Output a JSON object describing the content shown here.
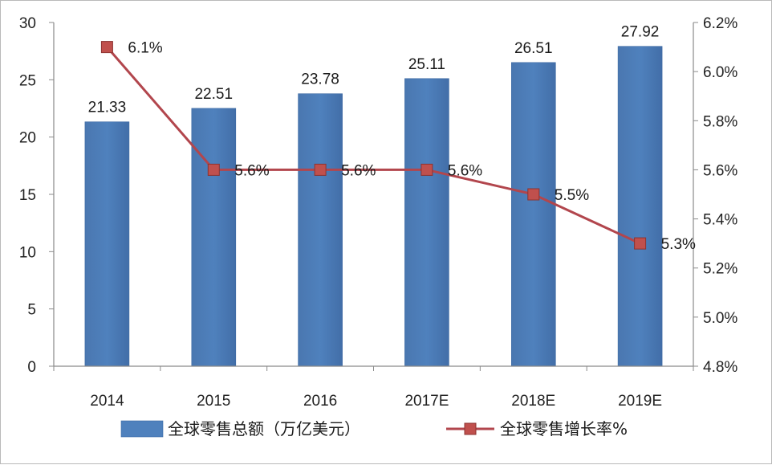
{
  "chart_data": {
    "type": "bar",
    "categories": [
      "2014",
      "2015",
      "2016",
      "2017E",
      "2018E",
      "2019E"
    ],
    "series": [
      {
        "name": "全球零售总额（万亿美元）",
        "type": "bar",
        "axis": "left",
        "values": [
          21.33,
          22.51,
          23.78,
          25.11,
          26.51,
          27.92
        ],
        "labels": [
          "21.33",
          "22.51",
          "23.78",
          "25.11",
          "26.51",
          "27.92"
        ],
        "color": "#4f81bd"
      },
      {
        "name": "全球零售增长率%",
        "type": "line",
        "axis": "right",
        "values": [
          6.1,
          5.6,
          5.6,
          5.6,
          5.5,
          5.3
        ],
        "labels": [
          "6.1%",
          "5.6%",
          "5.6%",
          "5.6%",
          "5.5%",
          "5.3%"
        ],
        "color": "#b2464d"
      }
    ],
    "y_left": {
      "lim": [
        0,
        30
      ],
      "ticks": [
        0,
        5,
        10,
        15,
        20,
        25,
        30
      ],
      "tick_labels": [
        "0",
        "5",
        "10",
        "15",
        "20",
        "25",
        "30"
      ]
    },
    "y_right": {
      "lim": [
        4.8,
        6.2
      ],
      "ticks": [
        4.8,
        5.0,
        5.2,
        5.4,
        5.6,
        5.8,
        6.0,
        6.2
      ],
      "tick_labels": [
        "4.8%",
        "5.0%",
        "5.2%",
        "5.4%",
        "5.6%",
        "5.8%",
        "6.0%",
        "6.2%"
      ]
    },
    "grid": false,
    "legend_position": "bottom"
  }
}
